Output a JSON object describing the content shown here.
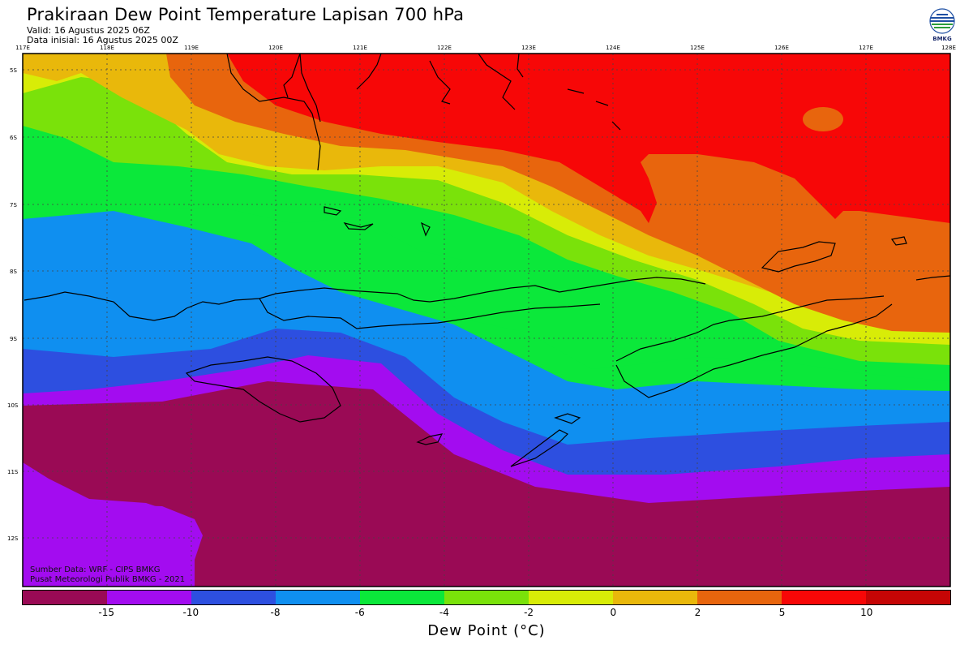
{
  "header": {
    "title": "Prakiraan Dew Point Temperature Lapisan 700 hPa",
    "valid": "Valid: 16 Agustus 2025 06Z",
    "init": "Data inisial: 16 Agustus 2025 00Z",
    "logo_text": "BMKG"
  },
  "axes": {
    "lon_labels": [
      "117E",
      "118E",
      "119E",
      "120E",
      "121E",
      "122E",
      "123E",
      "124E",
      "125E",
      "126E",
      "127E",
      "128E"
    ],
    "lat_labels": [
      "5S",
      "6S",
      "7S",
      "8S",
      "9S",
      "10S",
      "11S",
      "12S"
    ],
    "gridlines": true
  },
  "colorbar": {
    "colors": [
      "#9a0a55",
      "#a30cf0",
      "#2d4fe0",
      "#0f8ff0",
      "#0be83a",
      "#7ae20a",
      "#d8ec07",
      "#e9b80b",
      "#e8650d",
      "#f70707",
      "#c50505"
    ],
    "ticks": [
      "-15",
      "-10",
      "-8",
      "-6",
      "-4",
      "-2",
      "0",
      "2",
      "5",
      "10"
    ],
    "label": "Dew Point (°C)"
  },
  "footer": {
    "source": "Sumber Data: WRF - CIPS BMKG",
    "org": "Pusat Meteorologi Publik BMKG - 2021"
  }
}
